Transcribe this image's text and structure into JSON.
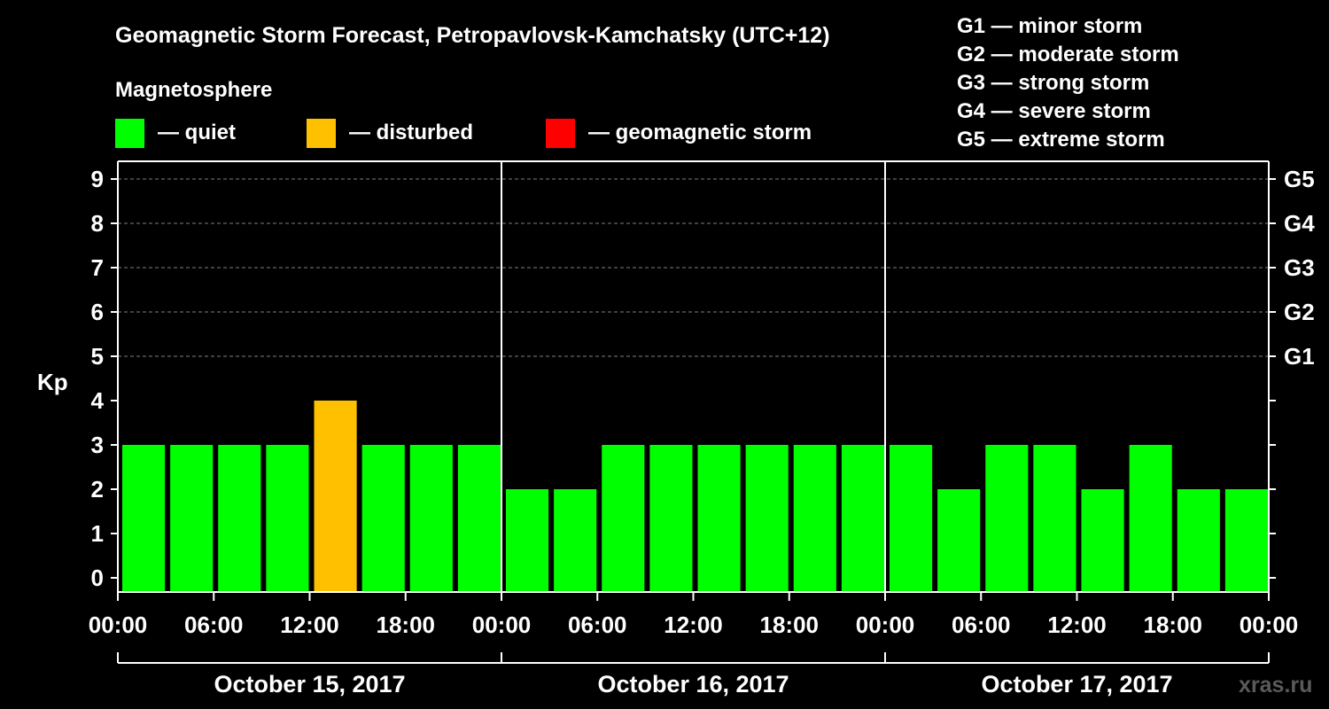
{
  "chart_data": {
    "type": "bar",
    "title": "Geomagnetic Storm Forecast, Petropavlovsk-Kamchatsky (UTC+12)",
    "ylabel": "Kp",
    "ylim": [
      0,
      9
    ],
    "yticks": [
      "0",
      "1",
      "2",
      "3",
      "4",
      "5",
      "6",
      "7",
      "8",
      "9"
    ],
    "right_ticks": [
      {
        "kp": 5,
        "label": "G1"
      },
      {
        "kp": 6,
        "label": "G2"
      },
      {
        "kp": 7,
        "label": "G3"
      },
      {
        "kp": 8,
        "label": "G4"
      },
      {
        "kp": 9,
        "label": "G5"
      }
    ],
    "legend_title": "Magnetosphere",
    "legend": [
      {
        "label": "— quiet",
        "color": "#00ff00"
      },
      {
        "label": "— disturbed",
        "color": "#ffc000"
      },
      {
        "label": "— geomagnetic storm",
        "color": "#ff0000"
      }
    ],
    "storm_scale": [
      "G1 — minor storm",
      "G2 — moderate storm",
      "G3 — strong storm",
      "G4 — severe storm",
      "G5 — extreme storm"
    ],
    "days": [
      "October 15, 2017",
      "October 16, 2017",
      "October 17, 2017"
    ],
    "time_labels": [
      "00:00",
      "06:00",
      "12:00",
      "18:00",
      "00:00",
      "06:00",
      "12:00",
      "18:00",
      "00:00",
      "06:00",
      "12:00",
      "18:00",
      "00:00"
    ],
    "interval_hours": 3,
    "values": [
      3,
      3,
      3,
      3,
      4,
      3,
      3,
      3,
      2,
      2,
      3,
      3,
      3,
      3,
      3,
      3,
      3,
      2,
      3,
      3,
      2,
      3,
      2,
      2
    ],
    "colors": [
      "#00ff00",
      "#00ff00",
      "#00ff00",
      "#00ff00",
      "#ffc000",
      "#00ff00",
      "#00ff00",
      "#00ff00",
      "#00ff00",
      "#00ff00",
      "#00ff00",
      "#00ff00",
      "#00ff00",
      "#00ff00",
      "#00ff00",
      "#00ff00",
      "#00ff00",
      "#00ff00",
      "#00ff00",
      "#00ff00",
      "#00ff00",
      "#00ff00",
      "#00ff00",
      "#00ff00"
    ],
    "grid_color": "#808080",
    "watermark": "xras.ru"
  }
}
